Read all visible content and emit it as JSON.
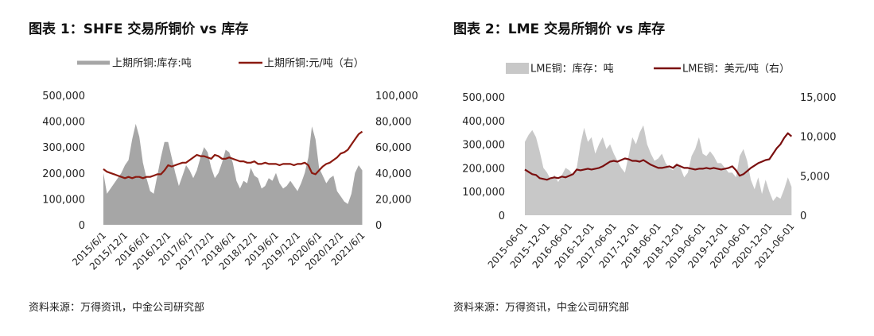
{
  "figures": [
    {
      "title": "图表 1：SHFE 交易所铜价 vs 库存",
      "source": "资料来源：万得资讯，中金公司研究部",
      "chart_data": {
        "type": "area",
        "area_color": "#a6a6a6",
        "line_color": "#8b1a10",
        "legend_position": "top",
        "legend": [
          "上期所铜:库存:吨",
          "上期所铜:元/吨（右）"
        ],
        "x_tick_labels": [
          "2015/6/1",
          "2015/12/1",
          "2016/6/1",
          "2016/12/1",
          "2017/6/1",
          "2017/12/1",
          "2018/6/1",
          "2018/12/1",
          "2019/6/1",
          "2019/12/1",
          "2020/6/1",
          "2020/12/1",
          "2021/6/1"
        ],
        "xlim": [
          0,
          73
        ],
        "left_axis": {
          "ylim": [
            0,
            500000
          ],
          "ticks": [
            "0",
            "100,000",
            "200,000",
            "300,000",
            "400,000",
            "500,000"
          ]
        },
        "right_axis": {
          "ylim": [
            0,
            100000
          ],
          "ticks": [
            "0",
            "20,000",
            "40,000",
            "60,000",
            "80,000",
            "100,000"
          ]
        },
        "series": [
          {
            "name": "上期所铜:库存:吨",
            "axis": "left",
            "render": "area",
            "x": [
              0,
              1,
              2,
              3,
              4,
              5,
              6,
              7,
              8,
              9,
              10,
              11,
              12,
              13,
              14,
              15,
              16,
              17,
              18,
              19,
              20,
              21,
              22,
              23,
              24,
              25,
              26,
              27,
              28,
              29,
              30,
              31,
              32,
              33,
              34,
              35,
              36,
              37,
              38,
              39,
              40,
              41,
              42,
              43,
              44,
              45,
              46,
              47,
              48,
              49,
              50,
              51,
              52,
              53,
              54,
              55,
              56,
              57,
              58,
              59,
              60,
              61,
              62,
              63,
              64,
              65,
              66,
              67,
              68,
              69,
              70,
              71,
              72
            ],
            "values": [
              200000,
              120000,
              140000,
              160000,
              180000,
              200000,
              230000,
              250000,
              330000,
              390000,
              340000,
              240000,
              180000,
              130000,
              120000,
              190000,
              260000,
              320000,
              320000,
              260000,
              200000,
              150000,
              190000,
              230000,
              210000,
              180000,
              210000,
              260000,
              300000,
              280000,
              220000,
              180000,
              200000,
              240000,
              290000,
              280000,
              240000,
              170000,
              140000,
              170000,
              160000,
              220000,
              190000,
              180000,
              140000,
              150000,
              180000,
              170000,
              200000,
              160000,
              140000,
              150000,
              170000,
              150000,
              130000,
              160000,
              200000,
              260000,
              380000,
              330000,
              220000,
              190000,
              160000,
              180000,
              190000,
              130000,
              110000,
              90000,
              80000,
              120000,
              200000,
              230000,
              210000
            ]
          },
          {
            "name": "上期所铜:元/吨（右）",
            "axis": "right",
            "render": "line",
            "x": [
              0,
              1,
              2,
              3,
              4,
              5,
              6,
              7,
              8,
              9,
              10,
              11,
              12,
              13,
              14,
              15,
              16,
              17,
              18,
              19,
              20,
              21,
              22,
              23,
              24,
              25,
              26,
              27,
              28,
              29,
              30,
              31,
              32,
              33,
              34,
              35,
              36,
              37,
              38,
              39,
              40,
              41,
              42,
              43,
              44,
              45,
              46,
              47,
              48,
              49,
              50,
              51,
              52,
              53,
              54,
              55,
              56,
              57,
              58,
              59,
              60,
              61,
              62,
              63,
              64,
              65,
              66,
              67,
              68,
              69,
              70,
              71,
              72
            ],
            "values": [
              43000,
              41000,
              40000,
              39000,
              38000,
              37000,
              36000,
              37000,
              36000,
              37000,
              37000,
              36000,
              37000,
              37000,
              38000,
              39000,
              39000,
              42000,
              46000,
              45000,
              46000,
              47000,
              48000,
              48000,
              50000,
              52000,
              54000,
              53000,
              53000,
              52000,
              51000,
              54000,
              53000,
              51000,
              51000,
              52000,
              51000,
              50000,
              49000,
              49000,
              48000,
              48000,
              49000,
              47000,
              47000,
              48000,
              47000,
              47000,
              47000,
              46000,
              47000,
              47000,
              47000,
              46000,
              47000,
              47000,
              48000,
              46000,
              40000,
              39000,
              42000,
              45000,
              47000,
              48000,
              50000,
              52000,
              55000,
              56000,
              58000,
              62000,
              66000,
              70000,
              72000
            ]
          }
        ]
      }
    },
    {
      "title": "图表 2：LME 交易所铜价 vs 库存",
      "source": "资料来源：万得资讯，中金公司研究部",
      "chart_data": {
        "type": "area",
        "area_color": "#c8c8c8",
        "line_color": "#7a0f0f",
        "legend_position": "top",
        "legend": [
          "LME铜：库存：吨",
          "LME铜：美元/吨（右）"
        ],
        "x_tick_labels": [
          "2015-06-01",
          "2015-12-01",
          "2016-06-01",
          "2016-12-01",
          "2017-06-01",
          "2017-12-01",
          "2018-06-01",
          "2018-12-01",
          "2019-06-01",
          "2019-12-01",
          "2020-06-01",
          "2020-12-01",
          "2021-06-01"
        ],
        "xlim": [
          0,
          73
        ],
        "left_axis": {
          "ylim": [
            0,
            500000
          ],
          "ticks": [
            "0",
            "100,000",
            "200,000",
            "300,000",
            "400,000",
            "500,000"
          ]
        },
        "right_axis": {
          "ylim": [
            0,
            15000
          ],
          "ticks": [
            "0",
            "5,000",
            "10,000",
            "15,000"
          ]
        },
        "series": [
          {
            "name": "LME铜：库存：吨",
            "axis": "left",
            "render": "area",
            "x": [
              0,
              1,
              2,
              3,
              4,
              5,
              6,
              7,
              8,
              9,
              10,
              11,
              12,
              13,
              14,
              15,
              16,
              17,
              18,
              19,
              20,
              21,
              22,
              23,
              24,
              25,
              26,
              27,
              28,
              29,
              30,
              31,
              32,
              33,
              34,
              35,
              36,
              37,
              38,
              39,
              40,
              41,
              42,
              43,
              44,
              45,
              46,
              47,
              48,
              49,
              50,
              51,
              52,
              53,
              54,
              55,
              56,
              57,
              58,
              59,
              60,
              61,
              62,
              63,
              64,
              65,
              66,
              67,
              68,
              69,
              70,
              71,
              72
            ],
            "values": [
              310000,
              340000,
              360000,
              330000,
              270000,
              200000,
              180000,
              150000,
              170000,
              140000,
              170000,
              200000,
              190000,
              170000,
              200000,
              300000,
              370000,
              310000,
              330000,
              260000,
              300000,
              330000,
              280000,
              300000,
              260000,
              230000,
              200000,
              180000,
              250000,
              330000,
              300000,
              350000,
              380000,
              300000,
              260000,
              230000,
              240000,
              260000,
              220000,
              200000,
              190000,
              220000,
              200000,
              160000,
              180000,
              250000,
              280000,
              330000,
              260000,
              250000,
              270000,
              250000,
              220000,
              220000,
              200000,
              180000,
              180000,
              160000,
              250000,
              280000,
              230000,
              150000,
              110000,
              160000,
              90000,
              150000,
              100000,
              60000,
              80000,
              70000,
              110000,
              160000,
              120000
            ]
          },
          {
            "name": "LME铜：美元/吨（右）",
            "axis": "right",
            "render": "line",
            "x": [
              0,
              1,
              2,
              3,
              4,
              5,
              6,
              7,
              8,
              9,
              10,
              11,
              12,
              13,
              14,
              15,
              16,
              17,
              18,
              19,
              20,
              21,
              22,
              23,
              24,
              25,
              26,
              27,
              28,
              29,
              30,
              31,
              32,
              33,
              34,
              35,
              36,
              37,
              38,
              39,
              40,
              41,
              42,
              43,
              44,
              45,
              46,
              47,
              48,
              49,
              50,
              51,
              52,
              53,
              54,
              55,
              56,
              57,
              58,
              59,
              60,
              61,
              62,
              63,
              64,
              65,
              66,
              67,
              68,
              69,
              70,
              71,
              72
            ],
            "values": [
              5800,
              5500,
              5200,
              5100,
              4700,
              4600,
              4500,
              4700,
              4800,
              4700,
              4900,
              4800,
              5000,
              5200,
              5800,
              5700,
              5800,
              5900,
              5800,
              5900,
              6000,
              6200,
              6500,
              6800,
              6900,
              6800,
              7000,
              7200,
              7100,
              6900,
              6900,
              6800,
              7000,
              6700,
              6400,
              6200,
              6000,
              6000,
              6100,
              6200,
              6000,
              6400,
              6200,
              6000,
              6000,
              5900,
              5800,
              5900,
              5900,
              6000,
              5900,
              6000,
              5900,
              5800,
              5900,
              6000,
              6200,
              5700,
              5000,
              5200,
              5600,
              6000,
              6300,
              6600,
              6800,
              7000,
              7100,
              7800,
              8500,
              9000,
              9800,
              10400,
              10000
            ]
          }
        ]
      }
    }
  ]
}
